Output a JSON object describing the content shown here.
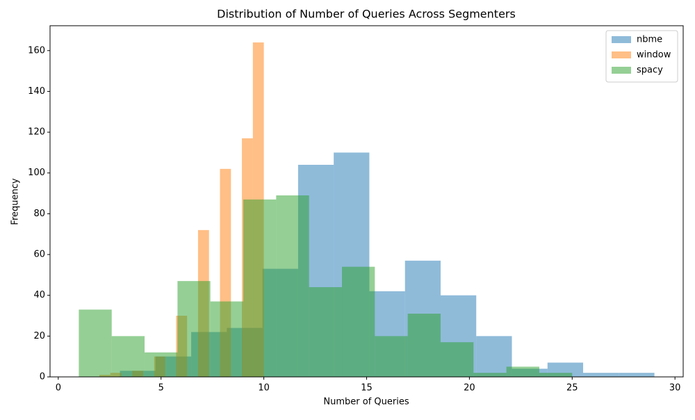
{
  "chart_data": {
    "type": "histogram",
    "title": "Distribution of Number of Queries Across Segmenters",
    "xlabel": "Number of Queries",
    "ylabel": "Frequency",
    "xlim": [
      -0.4,
      30.4
    ],
    "ylim": [
      0,
      172.2
    ],
    "xticks": [
      0,
      5,
      10,
      15,
      20,
      25,
      30
    ],
    "yticks": [
      0,
      20,
      40,
      60,
      80,
      100,
      120,
      140,
      160
    ],
    "legend": "upper right",
    "opacity": 0.5,
    "series": [
      {
        "name": "nbme",
        "color": "#1f77b4",
        "bins": [
          3,
          4.733,
          6.467,
          8.2,
          9.933,
          11.667,
          13.4,
          15.133,
          16.867,
          18.6,
          20.333,
          22.067,
          23.8,
          25.533,
          27.267,
          29
        ],
        "values": [
          3,
          10,
          22,
          24,
          53,
          104,
          110,
          42,
          57,
          40,
          20,
          4,
          7,
          2,
          2
        ]
      },
      {
        "name": "window",
        "color": "#ff7f0e",
        "bins": [
          2,
          2.533,
          3.067,
          3.6,
          4.133,
          4.667,
          5.2,
          5.733,
          6.267,
          6.8,
          7.333,
          7.867,
          8.4,
          8.933,
          9.467,
          10
        ],
        "values": [
          1,
          2,
          0,
          3,
          0,
          10,
          0,
          30,
          0,
          72,
          0,
          102,
          0,
          117,
          164
        ]
      },
      {
        "name": "spacy",
        "color": "#2ca02c",
        "bins": [
          1,
          2.6,
          4.2,
          5.8,
          7.4,
          9,
          10.6,
          12.2,
          13.8,
          15.4,
          17,
          18.6,
          20.2,
          21.8,
          23.4,
          25
        ],
        "values": [
          33,
          20,
          12,
          47,
          37,
          87,
          89,
          44,
          54,
          20,
          31,
          17,
          2,
          5,
          2
        ]
      }
    ]
  }
}
